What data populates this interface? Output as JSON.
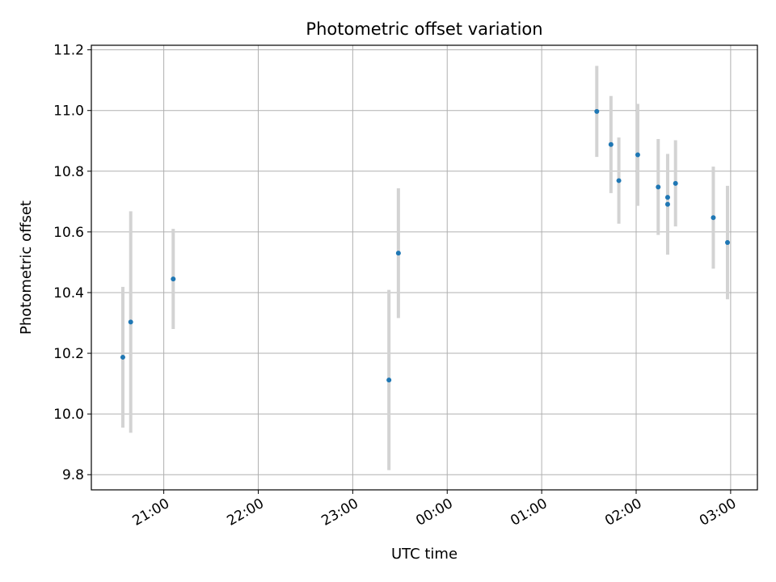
{
  "chart_data": {
    "type": "scatter",
    "title": "Photometric offset variation",
    "xlabel": "UTC time",
    "ylabel": "Photometric offset",
    "x_ticks": [
      "21:00",
      "22:00",
      "23:00",
      "00:00",
      "01:00",
      "02:00",
      "03:00"
    ],
    "y_ticks": [
      "9.8",
      "10.0",
      "10.2",
      "10.4",
      "10.6",
      "10.8",
      "11.0",
      "11.2"
    ],
    "ylim": [
      9.75,
      11.215
    ],
    "xlim": [
      "20:14",
      "03:17"
    ],
    "grid": true,
    "colors": {
      "point": "#1f77b4",
      "errorbar": "#d3d3d3",
      "grid": "#b0b0b0"
    },
    "points": [
      {
        "x": "20:34",
        "y": 10.187,
        "err": 0.232
      },
      {
        "x": "20:39",
        "y": 10.303,
        "err": 0.365
      },
      {
        "x": "21:06",
        "y": 10.445,
        "err": 0.165
      },
      {
        "x": "23:23",
        "y": 10.112,
        "err": 0.297
      },
      {
        "x": "23:29",
        "y": 10.53,
        "err": 0.214
      },
      {
        "x": "01:35",
        "y": 10.997,
        "err": 0.15
      },
      {
        "x": "01:44",
        "y": 10.888,
        "err": 0.16
      },
      {
        "x": "01:49",
        "y": 10.769,
        "err": 0.142
      },
      {
        "x": "02:01",
        "y": 10.854,
        "err": 0.168
      },
      {
        "x": "02:14",
        "y": 10.748,
        "err": 0.158
      },
      {
        "x": "02:20",
        "y": 10.714,
        "err": 0.142
      },
      {
        "x": "02:20",
        "y": 10.691,
        "err": 0.166
      },
      {
        "x": "02:25",
        "y": 10.76,
        "err": 0.142
      },
      {
        "x": "02:49",
        "y": 10.647,
        "err": 0.168
      },
      {
        "x": "02:58",
        "y": 10.565,
        "err": 0.187
      }
    ]
  }
}
